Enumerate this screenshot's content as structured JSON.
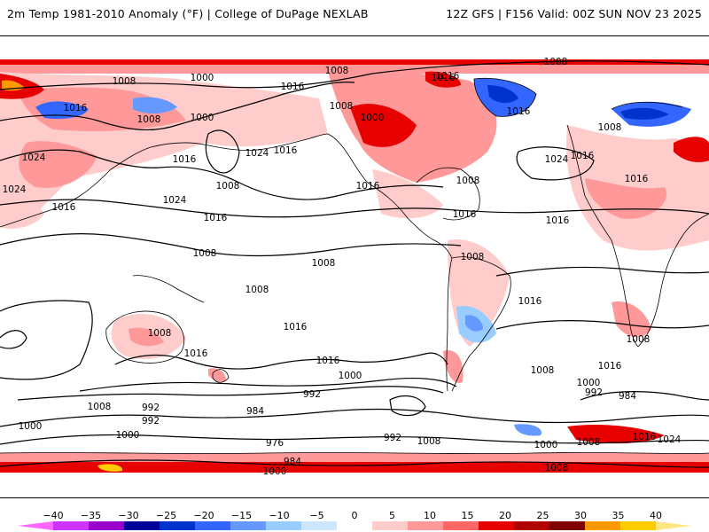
{
  "header": {
    "title_left": "2m Temp 1981-2010 Anomaly (°F) | College of DuPage NEXLAB",
    "title_right": "12Z GFS | F156 Valid: 00Z SUN NOV 23 2025"
  },
  "isobar_labels": [
    "1008",
    "1000",
    "1016",
    "1008",
    "1016",
    "1008",
    "1000",
    "1016",
    "1024",
    "1016",
    "1016",
    "1008",
    "1024",
    "1016",
    "1016",
    "1024",
    "1008",
    "1000",
    "1008",
    "1016",
    "1024",
    "1016",
    "1008",
    "1008",
    "1016",
    "1016",
    "1008",
    "1016",
    "1016",
    "1008",
    "1016",
    "1008",
    "1008",
    "1000",
    "992",
    "1016",
    "984",
    "992",
    "1000",
    "976",
    "984",
    "992",
    "1000",
    "992",
    "1008",
    "1000",
    "1024",
    "1016",
    "1008",
    "1000",
    "992",
    "984",
    "1008",
    "1024",
    "1016",
    "1008",
    "1016",
    "1016",
    "1008",
    "1016",
    "1008",
    "1008",
    "1000"
  ],
  "colorbar": {
    "ticks": [
      "−40",
      "−35",
      "−30",
      "−25",
      "−20",
      "−15",
      "−10",
      "−5",
      "0",
      "5",
      "10",
      "15",
      "20",
      "25",
      "30",
      "35",
      "40"
    ],
    "colors": [
      "#ff66ff",
      "#cc33ff",
      "#9900cc",
      "#000099",
      "#0033cc",
      "#3366ff",
      "#6699ff",
      "#99ccff",
      "#cce6ff",
      "#ffffff",
      "#ffcccc",
      "#ff9999",
      "#ff6666",
      "#e60000",
      "#b30000",
      "#800000",
      "#ff9900",
      "#ffcc00",
      "#ffe680"
    ]
  }
}
